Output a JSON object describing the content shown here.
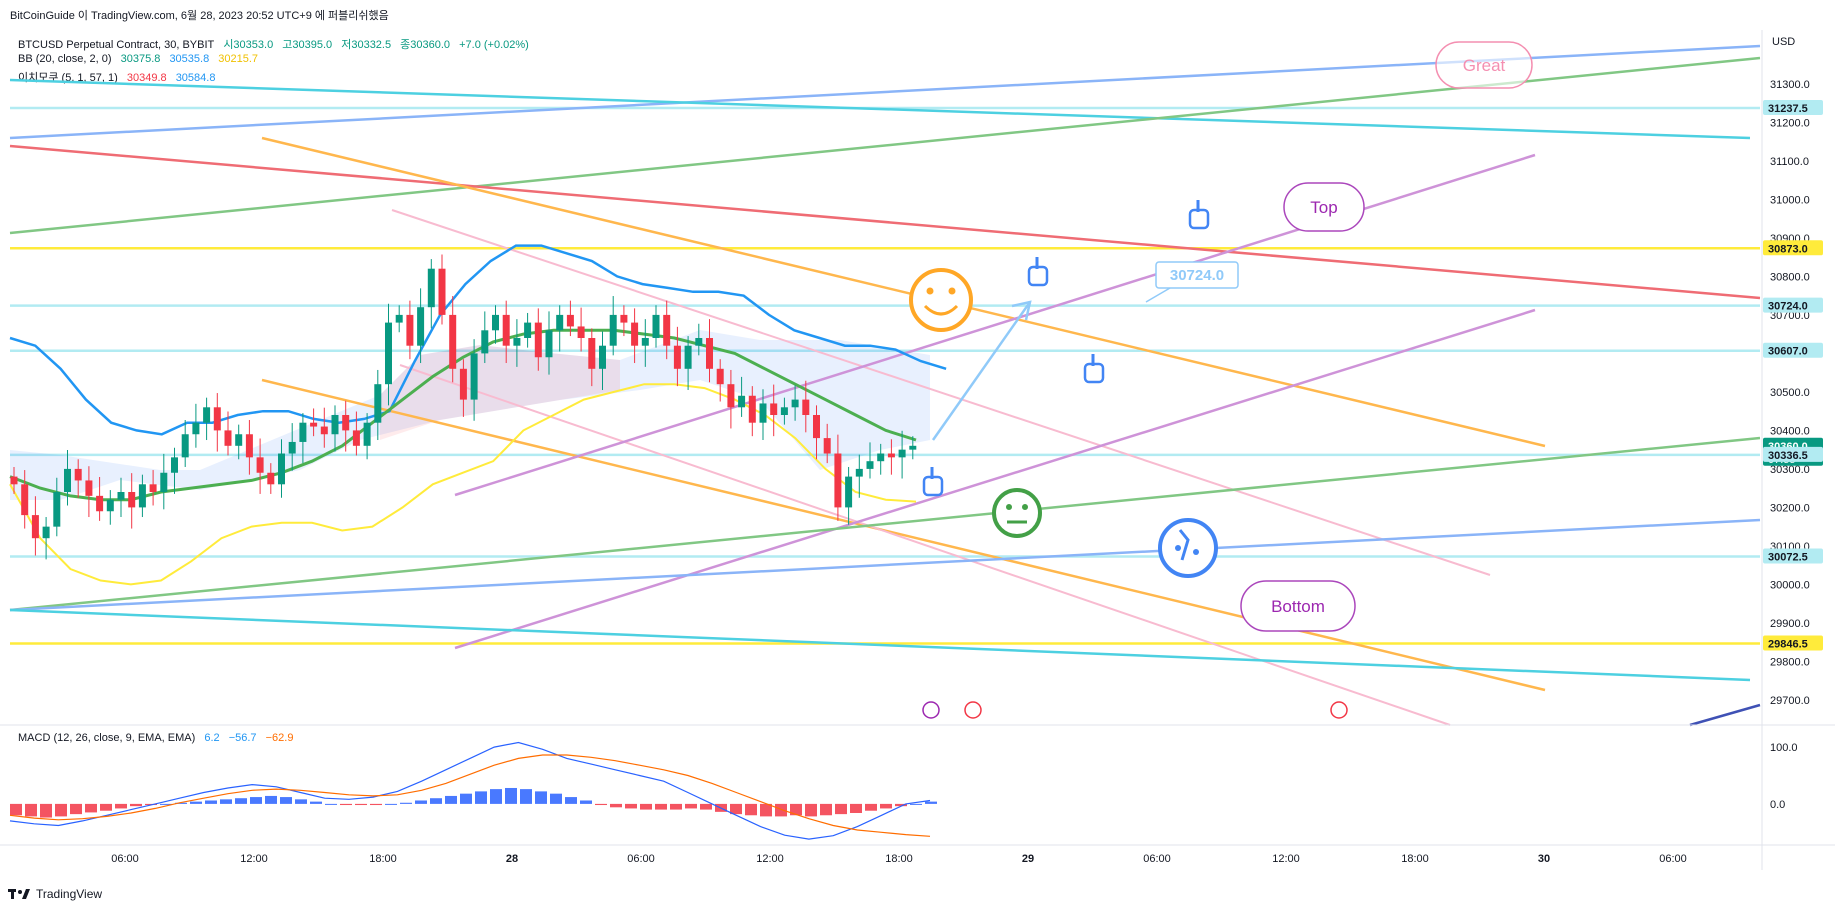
{
  "caption": "BitCoinGuide 이 TradingView.com, 6월 28, 2023 20:52 UTC+9 에 퍼블리쉬했음",
  "legend_main": {
    "name": "BTCUSD Perpetual Contract, 30, BYBIT",
    "o": "시30353.0",
    "h": "고30395.0",
    "l": "저30332.5",
    "c": "종30360.0",
    "chg": "+7.0 (+0.02%)"
  },
  "legend_bb": {
    "name": "BB (20, close, 2, 0)",
    "v1": "30375.8",
    "v2": "30535.8",
    "v3": "30215.7"
  },
  "legend_ichi": {
    "name": "이치모쿠 (5, 1, 57, 1)",
    "v1": "30349.8",
    "v2": "30584.8"
  },
  "legend_macd": {
    "name": "MACD (12, 26, close, 9, EMA, EMA)",
    "v1": "6.2",
    "v2": "−56.7",
    "v3": "−62.9"
  },
  "currency": "USD",
  "footer": "TradingView",
  "colors": {
    "up": "#089981",
    "down": "#f23645",
    "bb_basis": "#4caf50",
    "bb_upper": "#2196f3",
    "bb_lower": "#ffeb3b",
    "macd_line": "#2962ff",
    "signal_line": "#ff6d00"
  },
  "chart_data": {
    "type": "line",
    "symbol": "BTCUSD",
    "interval": "30",
    "y_range": [
      29640,
      31440
    ],
    "y_ticks": [
      "31300.0",
      "31200.0",
      "31100.0",
      "31000.0",
      "30900.0",
      "30800.0",
      "30700.0",
      "30600.0",
      "30500.0",
      "30400.0",
      "30300.0",
      "30200.0",
      "30100.0",
      "30000.0",
      "29900.0",
      "29800.0",
      "29700.0"
    ],
    "x_ticks": [
      "06:00",
      "12:00",
      "18:00",
      "28",
      "06:00",
      "12:00",
      "18:00",
      "29",
      "06:00",
      "12:00",
      "18:00",
      "30",
      "06:00"
    ],
    "price_labels": [
      {
        "text": "31237.5",
        "value": 31237.5,
        "color": "#b2ebf2",
        "fg": "#131722"
      },
      {
        "text": "30873.0",
        "value": 30873.0,
        "color": "#ffeb3b",
        "fg": "#131722"
      },
      {
        "text": "30724.0",
        "value": 30724.0,
        "color": "#b2ebf2",
        "fg": "#131722"
      },
      {
        "text": "30607.0",
        "value": 30607.0,
        "color": "#b2ebf2",
        "fg": "#131722"
      },
      {
        "text": "30360.0",
        "value": 30360.0,
        "color": "#089981",
        "fg": "#ffffff",
        "sub": "07:55"
      },
      {
        "text": "30336.5",
        "value": 30336.5,
        "color": "#b2ebf2",
        "fg": "#131722"
      },
      {
        "text": "30072.5",
        "value": 30072.5,
        "color": "#b2ebf2",
        "fg": "#131722"
      },
      {
        "text": "29846.5",
        "value": 29846.5,
        "color": "#ffeb3b",
        "fg": "#131722"
      }
    ],
    "horizontal_levels": [
      {
        "value": 31237.5,
        "color": "#b2ebf2"
      },
      {
        "value": 30873.0,
        "color": "#ffeb3b"
      },
      {
        "value": 30724.0,
        "color": "#b2ebf2"
      },
      {
        "value": 30607.0,
        "color": "#b2ebf2"
      },
      {
        "value": 30336.5,
        "color": "#b2ebf2"
      },
      {
        "value": 30072.5,
        "color": "#b2ebf2"
      },
      {
        "value": 29846.5,
        "color": "#ffeb3b"
      }
    ],
    "candles_close": [
      30260,
      30180,
      30120,
      30150,
      30240,
      30300,
      30270,
      30230,
      30190,
      30220,
      30240,
      30200,
      30260,
      30240,
      30290,
      30330,
      30390,
      30420,
      30460,
      30400,
      30360,
      30390,
      30330,
      30290,
      30260,
      30340,
      30370,
      30420,
      30410,
      30390,
      30440,
      30400,
      30360,
      30420,
      30520,
      30680,
      30700,
      30620,
      30720,
      30820,
      30700,
      30560,
      30480,
      30600,
      30660,
      30700,
      30620,
      30640,
      30680,
      30590,
      30660,
      30700,
      30670,
      30640,
      30560,
      30620,
      30700,
      30680,
      30620,
      30640,
      30700,
      30620,
      30560,
      30620,
      30640,
      30560,
      30520,
      30460,
      30490,
      30420,
      30470,
      30440,
      30460,
      30480,
      30440,
      30380,
      30340,
      30200,
      30280,
      30300,
      30320,
      30340,
      30330,
      30350,
      30360
    ],
    "bb_upper": [
      30640,
      30620,
      30560,
      30480,
      30420,
      30400,
      30390,
      30420,
      30420,
      30440,
      30450,
      30450,
      30430,
      30420,
      30430,
      30450,
      30580,
      30700,
      30780,
      30840,
      30880,
      30880,
      30860,
      30840,
      30800,
      30780,
      30770,
      30760,
      30760,
      30750,
      30700,
      30660,
      30640,
      30620,
      30620,
      30610,
      30580,
      30560
    ],
    "bb_basis": [
      30280,
      30250,
      30230,
      30220,
      30220,
      30240,
      30250,
      30260,
      30270,
      30290,
      30320,
      30360,
      30420,
      30480,
      30540,
      30590,
      30630,
      30650,
      30660,
      30660,
      30660,
      30650,
      30640,
      30620,
      30600,
      30560,
      30520,
      30480,
      30440,
      30400,
      30375
    ],
    "bb_lower": [
      30260,
      30120,
      30040,
      30010,
      30000,
      30010,
      30060,
      30120,
      30150,
      30160,
      30160,
      30140,
      30150,
      30200,
      30260,
      30290,
      30320,
      30400,
      30440,
      30480,
      30500,
      30520,
      30520,
      30510,
      30480,
      30440,
      30380,
      30300,
      30240,
      30220,
      30215
    ],
    "macd_labels": [
      "100.0",
      "0.0"
    ],
    "macd_range": [
      -60,
      130
    ],
    "macd_hist": [
      -20,
      -22,
      -24,
      -22,
      -18,
      -15,
      -12,
      -8,
      -4,
      -2,
      0,
      2,
      4,
      6,
      8,
      10,
      12,
      14,
      12,
      8,
      4,
      0,
      -2,
      -2,
      -2,
      0,
      2,
      6,
      10,
      14,
      18,
      22,
      26,
      28,
      26,
      22,
      18,
      12,
      6,
      -2,
      -6,
      -8,
      -10,
      -10,
      -10,
      -8,
      -10,
      -14,
      -18,
      -20,
      -22,
      -22,
      -20,
      -22,
      -20,
      -18,
      -16,
      -12,
      -8,
      -4,
      0,
      4
    ],
    "macd_line": [
      -30,
      -35,
      -38,
      -30,
      -20,
      -10,
      0,
      10,
      20,
      28,
      34,
      30,
      20,
      10,
      8,
      12,
      22,
      40,
      60,
      80,
      100,
      108,
      96,
      80,
      70,
      60,
      50,
      40,
      20,
      0,
      -20,
      -40,
      -55,
      -62,
      -56,
      -40,
      -20,
      0,
      6
    ],
    "signal_line": [
      -20,
      -25,
      -28,
      -26,
      -22,
      -16,
      -8,
      2,
      10,
      18,
      24,
      26,
      24,
      20,
      16,
      14,
      16,
      24,
      36,
      52,
      68,
      80,
      86,
      86,
      82,
      76,
      68,
      60,
      50,
      36,
      20,
      4,
      -12,
      -26,
      -38,
      -46,
      -50,
      -54,
      -57
    ]
  },
  "annotations": {
    "great": "Great",
    "top": "Top",
    "bottom": "Bottom",
    "price_note": "30724.0"
  }
}
